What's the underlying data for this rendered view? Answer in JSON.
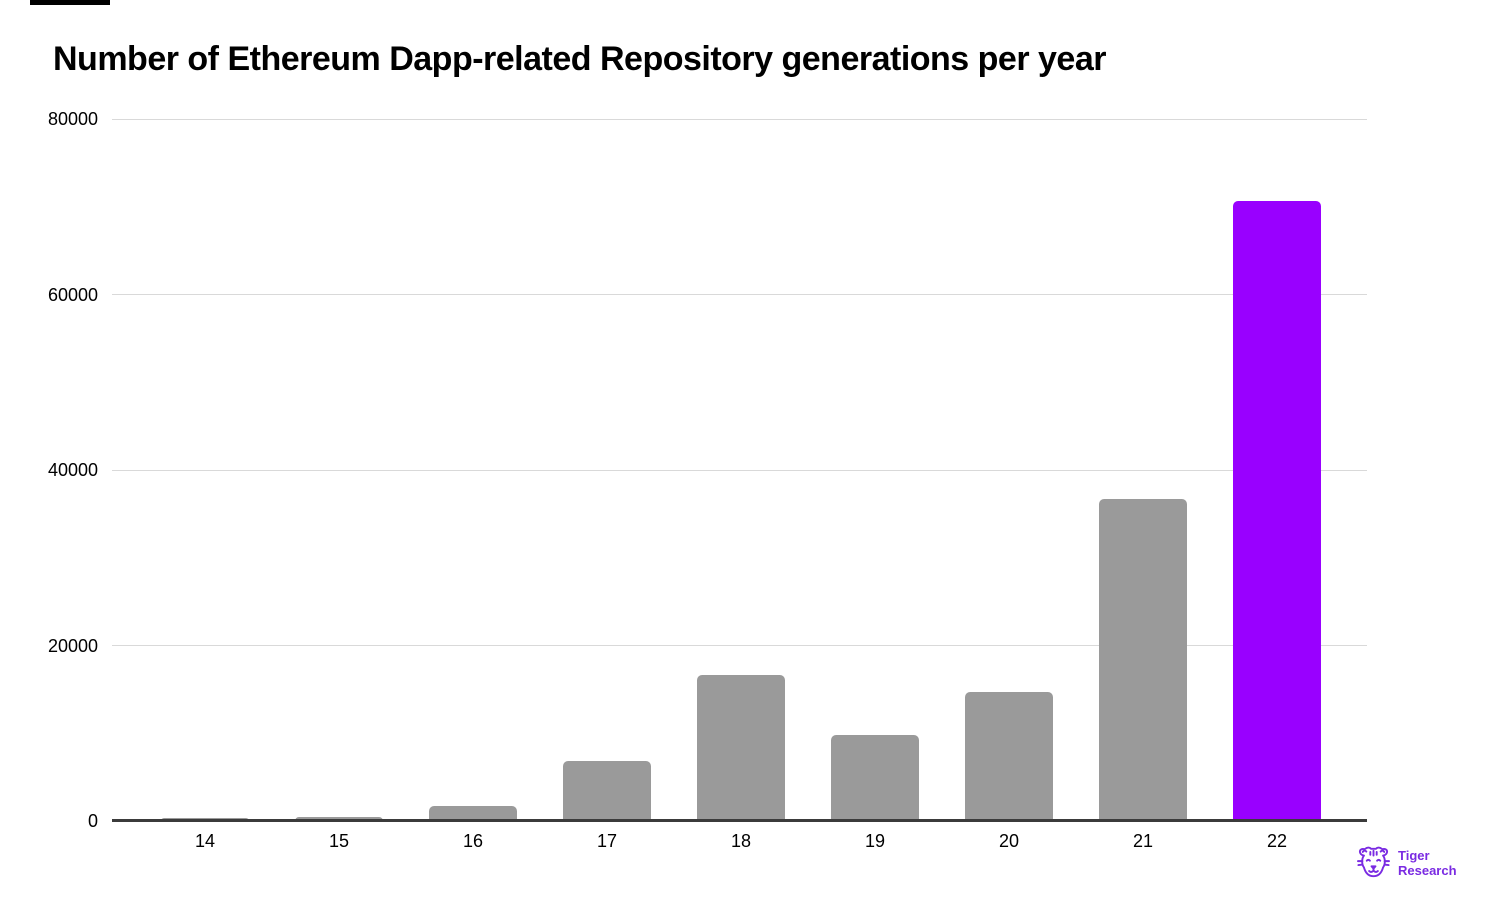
{
  "chart_data": {
    "type": "bar",
    "title": "Number of Ethereum Dapp-related Repository generations per year",
    "categories": [
      "14",
      "15",
      "16",
      "17",
      "18",
      "19",
      "20",
      "21",
      "22"
    ],
    "values": [
      300,
      450,
      1700,
      6800,
      16600,
      9800,
      14700,
      36700,
      70700
    ],
    "xlabel": "",
    "ylabel": "",
    "ylim": [
      0,
      80000
    ],
    "yticks": [
      0,
      20000,
      40000,
      60000,
      80000
    ],
    "grid": true,
    "legend": false,
    "bar_color": "#9a9a9a",
    "highlight_index": 8,
    "highlight_color": "#9900ff",
    "gridline_color": "#d9d9d9",
    "axis_line_color": "#3b3b3b"
  },
  "logo": {
    "line1": "Tiger",
    "line2": "Research",
    "color": "#7a2be2"
  }
}
